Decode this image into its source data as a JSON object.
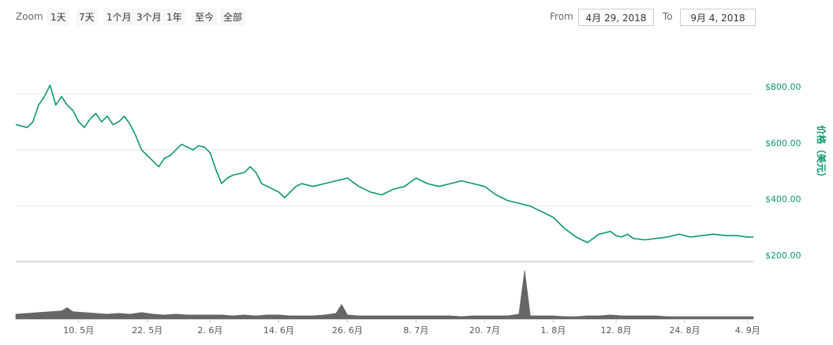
{
  "toolbar": {
    "zoom_label": "Zoom",
    "zoom_buttons": [
      "1天",
      "7天",
      "1个月",
      "3个月",
      "1年",
      "至今",
      "全部"
    ],
    "from_label": "From",
    "from_value": "4月 29, 2018",
    "to_label": "To",
    "to_value": "9月 4, 2018"
  },
  "colors": {
    "price_line": "#0b9a6b",
    "volume_fill": "#666666",
    "grid": "#e6e6e6",
    "axis_label": "#0b9a6b"
  },
  "chart_data": {
    "type": "line",
    "title": "",
    "ylabel": "价格（美元）",
    "ylim": [
      200,
      900
    ],
    "y_ticks": [
      200,
      400,
      600,
      800
    ],
    "y_tick_labels": [
      "$200.00",
      "$400.00",
      "$600.00",
      "$800.00"
    ],
    "x_ticks": [
      "10. 5月",
      "22. 5月",
      "2. 6月",
      "14. 6月",
      "26. 6月",
      "8. 7月",
      "20. 7月",
      "1. 8月",
      "12. 8月",
      "24. 8月",
      "4. 9月"
    ],
    "x_tick_days": [
      11,
      23,
      34,
      46,
      58,
      70,
      82,
      94,
      105,
      117,
      128
    ],
    "x_range_days": [
      0,
      129
    ],
    "grid": true,
    "legend": "none",
    "series": [
      {
        "type": "line",
        "day": [
          0,
          2,
          3,
          4,
          5,
          6,
          7,
          8,
          9,
          10,
          11,
          12,
          13,
          14,
          15,
          16,
          17,
          18,
          19,
          20,
          21,
          22,
          23,
          24,
          25,
          26,
          27,
          28,
          29,
          30,
          31,
          32,
          33,
          34,
          35,
          36,
          37,
          38,
          39,
          40,
          41,
          42,
          43,
          44,
          45,
          46,
          47,
          48,
          49,
          50,
          52,
          54,
          56,
          58,
          60,
          62,
          64,
          66,
          68,
          70,
          72,
          74,
          76,
          78,
          80,
          82,
          84,
          86,
          88,
          90,
          92,
          94,
          96,
          98,
          100,
          102,
          104,
          105,
          106,
          107,
          108,
          110,
          112,
          114,
          116,
          118,
          120,
          122,
          124,
          126,
          128,
          129
        ],
        "values": [
          690,
          680,
          700,
          760,
          790,
          830,
          760,
          790,
          760,
          740,
          700,
          680,
          710,
          730,
          700,
          720,
          690,
          700,
          720,
          690,
          650,
          600,
          580,
          560,
          540,
          570,
          580,
          600,
          620,
          610,
          600,
          615,
          610,
          590,
          530,
          480,
          500,
          510,
          515,
          520,
          540,
          520,
          480,
          470,
          460,
          450,
          430,
          450,
          470,
          480,
          470,
          480,
          490,
          500,
          470,
          450,
          440,
          460,
          470,
          500,
          480,
          470,
          480,
          490,
          480,
          470,
          440,
          420,
          410,
          400,
          380,
          360,
          320,
          290,
          270,
          300,
          310,
          295,
          290,
          300,
          285,
          280,
          285,
          290,
          300,
          290,
          295,
          300,
          295,
          295,
          290,
          290
        ]
      },
      {
        "type": "volume",
        "day": [
          0,
          2,
          4,
          6,
          8,
          9,
          10,
          12,
          14,
          16,
          18,
          20,
          22,
          24,
          26,
          28,
          30,
          32,
          34,
          36,
          38,
          40,
          42,
          44,
          46,
          48,
          50,
          52,
          54,
          56,
          57,
          58,
          60,
          62,
          64,
          66,
          68,
          70,
          72,
          74,
          76,
          78,
          80,
          82,
          84,
          86,
          88,
          89,
          90,
          92,
          94,
          96,
          98,
          100,
          102,
          104,
          106,
          108,
          110,
          112,
          114,
          116,
          118,
          120,
          122,
          124,
          126,
          128,
          129
        ],
        "values": [
          6,
          7,
          8,
          9,
          10,
          14,
          9,
          8,
          7,
          6,
          7,
          6,
          8,
          6,
          5,
          6,
          5,
          5,
          5,
          5,
          4,
          5,
          4,
          5,
          5,
          4,
          4,
          4,
          5,
          7,
          18,
          5,
          4,
          4,
          4,
          4,
          4,
          4,
          4,
          4,
          4,
          3,
          4,
          4,
          4,
          4,
          6,
          60,
          4,
          4,
          4,
          3,
          3,
          4,
          4,
          5,
          4,
          4,
          4,
          4,
          3,
          3,
          3,
          3,
          3,
          3,
          3,
          3,
          3
        ]
      }
    ]
  }
}
